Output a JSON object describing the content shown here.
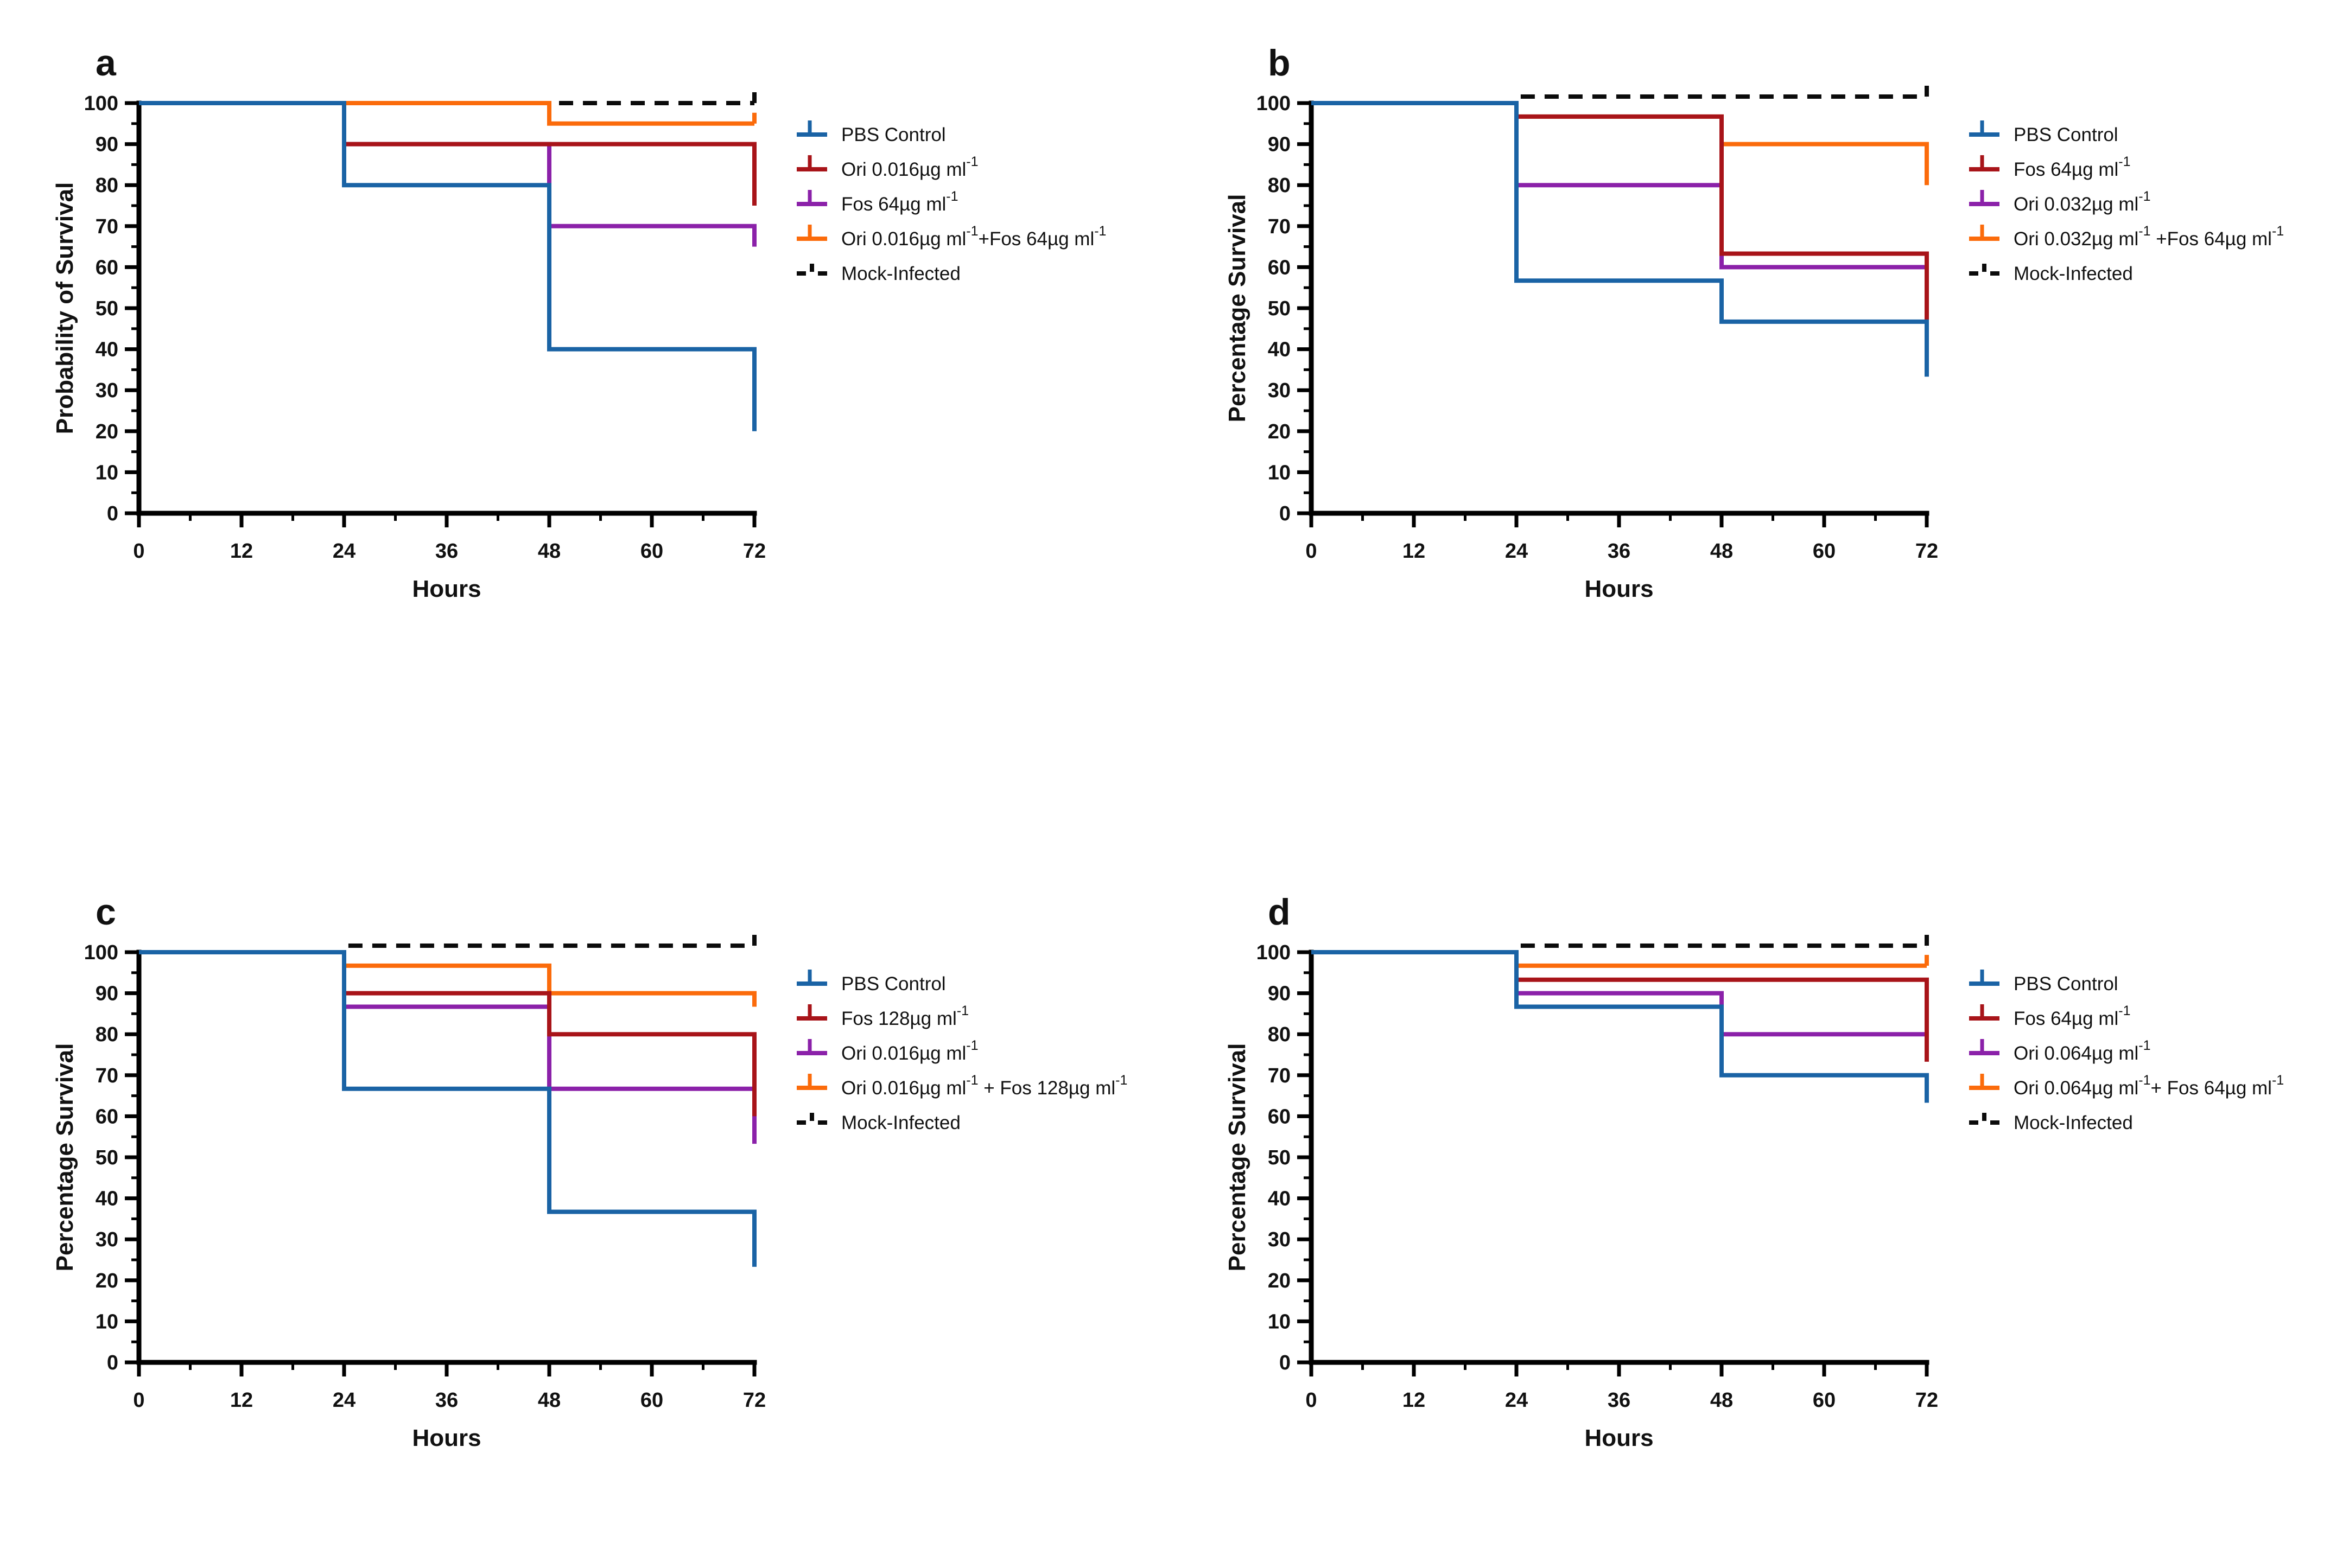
{
  "palette": {
    "blue": "#1A63A5",
    "dark_red": "#A81419",
    "purple": "#8B21A9",
    "orange": "#FB6B0B",
    "black": "#0B0B0B",
    "text": "#111111",
    "axis": "#000000"
  },
  "axis": {
    "xlabel": "Hours",
    "x_major": [
      0,
      12,
      24,
      36,
      48,
      60,
      72
    ],
    "x_minor": [
      6,
      18,
      30,
      42,
      54,
      66
    ],
    "y_major": [
      0,
      10,
      20,
      30,
      40,
      50,
      60,
      70,
      80,
      90,
      100
    ],
    "y_minor": [
      5,
      15,
      25,
      35,
      45,
      55,
      65,
      75,
      85,
      95
    ],
    "xlim": [
      0,
      72
    ],
    "ylim": [
      0,
      100
    ],
    "grid": false,
    "legend_position": "right"
  },
  "chart_data": [
    {
      "panel": "a",
      "type": "line",
      "step": true,
      "title": "",
      "xlabel": "Hours",
      "ylabel": "Probability of Survival",
      "xlim": [
        0,
        72
      ],
      "ylim": [
        0,
        100
      ],
      "mock_above": false,
      "series": [
        {
          "name": "PBS Control",
          "color": "blue",
          "style": "solid",
          "end_tick": false,
          "points": [
            [
              0,
              100
            ],
            [
              24,
              100
            ],
            [
              24,
              80
            ],
            [
              48,
              80
            ],
            [
              48,
              40
            ],
            [
              72,
              40
            ],
            [
              72,
              20
            ]
          ]
        },
        {
          "name": "Ori 0.016µg ml⁻¹",
          "color": "dark_red",
          "style": "solid",
          "end_tick": false,
          "points": [
            [
              0,
              100
            ],
            [
              24,
              100
            ],
            [
              24,
              90
            ],
            [
              72,
              90
            ],
            [
              72,
              75
            ]
          ]
        },
        {
          "name": "Fos 64µg ml⁻¹",
          "color": "purple",
          "style": "solid",
          "end_tick": false,
          "points": [
            [
              0,
              100
            ],
            [
              24,
              100
            ],
            [
              24,
              90
            ],
            [
              48,
              90
            ],
            [
              48,
              70
            ],
            [
              72,
              70
            ],
            [
              72,
              65
            ]
          ]
        },
        {
          "name": "Ori 0.016µg ml⁻¹+Fos 64µg ml⁻¹",
          "color": "orange",
          "style": "solid",
          "end_tick": true,
          "points": [
            [
              0,
              100
            ],
            [
              24,
              100
            ],
            [
              48,
              100
            ],
            [
              48,
              95
            ],
            [
              72,
              95
            ]
          ]
        },
        {
          "name": "Mock-Infected",
          "color": "black",
          "style": "dashed",
          "end_tick": true,
          "points": [
            [
              24,
              100
            ],
            [
              72,
              100
            ]
          ]
        }
      ]
    },
    {
      "panel": "b",
      "type": "line",
      "step": true,
      "title": "",
      "xlabel": "Hours",
      "ylabel": "Percentage Survival",
      "xlim": [
        0,
        72
      ],
      "ylim": [
        0,
        100
      ],
      "mock_above": true,
      "series": [
        {
          "name": "PBS Control",
          "color": "blue",
          "style": "solid",
          "end_tick": false,
          "points": [
            [
              0,
              100
            ],
            [
              24,
              100
            ],
            [
              24,
              56.7
            ],
            [
              48,
              56.7
            ],
            [
              48,
              46.7
            ],
            [
              72,
              46.7
            ],
            [
              72,
              33.3
            ]
          ]
        },
        {
          "name": "Fos 64µg ml⁻¹",
          "color": "dark_red",
          "style": "solid",
          "end_tick": false,
          "points": [
            [
              0,
              100
            ],
            [
              24,
              100
            ],
            [
              24,
              96.7
            ],
            [
              48,
              96.7
            ],
            [
              48,
              63.3
            ],
            [
              72,
              63.3
            ],
            [
              72,
              46.7
            ]
          ]
        },
        {
          "name": "Ori 0.032µg ml⁻¹",
          "color": "purple",
          "style": "solid",
          "end_tick": false,
          "points": [
            [
              0,
              100
            ],
            [
              24,
              100
            ],
            [
              24,
              80
            ],
            [
              48,
              80
            ],
            [
              48,
              60
            ],
            [
              72,
              60
            ]
          ]
        },
        {
          "name": "Ori 0.032µg ml⁻¹ +Fos 64µg ml⁻¹",
          "color": "orange",
          "style": "solid",
          "end_tick": false,
          "points": [
            [
              0,
              100
            ],
            [
              24,
              100
            ],
            [
              24,
              96.7
            ],
            [
              48,
              96.7
            ],
            [
              48,
              90
            ],
            [
              72,
              90
            ],
            [
              72,
              80
            ]
          ]
        },
        {
          "name": "Mock-Infected",
          "color": "black",
          "style": "dashed",
          "end_tick": true,
          "points": [
            [
              24.5,
              100
            ],
            [
              72,
              100
            ]
          ]
        }
      ]
    },
    {
      "panel": "c",
      "type": "line",
      "step": true,
      "title": "",
      "xlabel": "Hours",
      "ylabel": "Percentage Survival",
      "xlim": [
        0,
        72
      ],
      "ylim": [
        0,
        100
      ],
      "mock_above": true,
      "series": [
        {
          "name": "PBS Control",
          "color": "blue",
          "style": "solid",
          "end_tick": false,
          "points": [
            [
              0,
              100
            ],
            [
              24,
              100
            ],
            [
              24,
              66.7
            ],
            [
              48,
              66.7
            ],
            [
              48,
              36.7
            ],
            [
              72,
              36.7
            ],
            [
              72,
              23.3
            ]
          ]
        },
        {
          "name": "Fos 128µg ml⁻¹",
          "color": "dark_red",
          "style": "solid",
          "end_tick": false,
          "points": [
            [
              0,
              100
            ],
            [
              24,
              100
            ],
            [
              24,
              90
            ],
            [
              48,
              90
            ],
            [
              48,
              80
            ],
            [
              72,
              80
            ],
            [
              72,
              60
            ]
          ]
        },
        {
          "name": "Ori 0.016µg ml⁻¹",
          "color": "purple",
          "style": "solid",
          "end_tick": false,
          "points": [
            [
              0,
              100
            ],
            [
              24,
              100
            ],
            [
              24,
              86.7
            ],
            [
              48,
              86.7
            ],
            [
              48,
              66.7
            ],
            [
              72,
              66.7
            ],
            [
              72,
              53.3
            ]
          ]
        },
        {
          "name": "Ori 0.016µg ml⁻¹ + Fos 128µg ml⁻¹",
          "color": "orange",
          "style": "solid",
          "end_tick": false,
          "points": [
            [
              0,
              100
            ],
            [
              24,
              100
            ],
            [
              24,
              96.7
            ],
            [
              48,
              96.7
            ],
            [
              48,
              90
            ],
            [
              72,
              90
            ],
            [
              72,
              86.7
            ]
          ]
        },
        {
          "name": "Mock-Infected",
          "color": "black",
          "style": "dashed",
          "end_tick": true,
          "points": [
            [
              24.5,
              100
            ],
            [
              72,
              100
            ]
          ]
        }
      ]
    },
    {
      "panel": "d",
      "type": "line",
      "step": true,
      "title": "",
      "xlabel": "Hours",
      "ylabel": "Percentage Survival",
      "xlim": [
        0,
        72
      ],
      "ylim": [
        0,
        100
      ],
      "mock_above": true,
      "series": [
        {
          "name": "PBS Control",
          "color": "blue",
          "style": "solid",
          "end_tick": false,
          "points": [
            [
              0,
              100
            ],
            [
              24,
              100
            ],
            [
              24,
              86.7
            ],
            [
              48,
              86.7
            ],
            [
              48,
              70
            ],
            [
              72,
              70
            ],
            [
              72,
              63.3
            ]
          ]
        },
        {
          "name": "Fos 64µg ml⁻¹",
          "color": "dark_red",
          "style": "solid",
          "end_tick": false,
          "points": [
            [
              0,
              100
            ],
            [
              24,
              100
            ],
            [
              24,
              93.3
            ],
            [
              72,
              93.3
            ],
            [
              72,
              73.3
            ]
          ]
        },
        {
          "name": "Ori 0.064µg ml⁻¹",
          "color": "purple",
          "style": "solid",
          "end_tick": false,
          "points": [
            [
              0,
              100
            ],
            [
              24,
              100
            ],
            [
              24,
              90
            ],
            [
              48,
              90
            ],
            [
              48,
              80
            ],
            [
              72,
              80
            ]
          ]
        },
        {
          "name": "Ori 0.064µg ml⁻¹+ Fos 64µg ml⁻¹",
          "color": "orange",
          "style": "solid",
          "end_tick": true,
          "points": [
            [
              0,
              100
            ],
            [
              24,
              100
            ],
            [
              24,
              96.7
            ],
            [
              72,
              96.7
            ]
          ]
        },
        {
          "name": "Mock-Infected",
          "color": "black",
          "style": "dashed",
          "end_tick": true,
          "points": [
            [
              24.5,
              100
            ],
            [
              72,
              100
            ]
          ]
        }
      ]
    }
  ]
}
